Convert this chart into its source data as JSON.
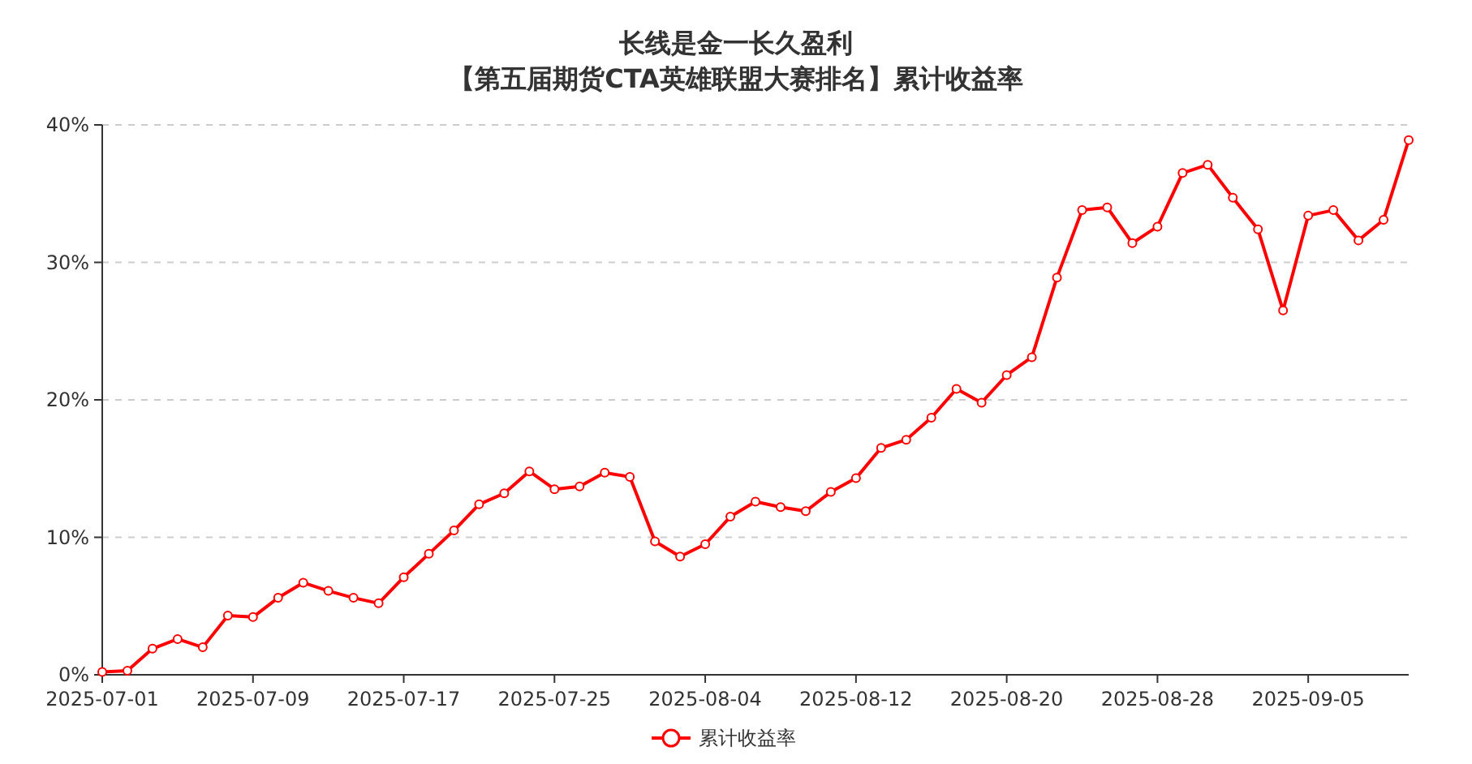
{
  "chart_data": {
    "type": "line",
    "title": "长线是金一长久盈利",
    "subtitle": "【第五届期货CTA英雄联盟大赛排名】累计收益率",
    "categories": [
      "2025-07-01",
      null,
      null,
      null,
      null,
      null,
      "2025-07-09",
      null,
      null,
      null,
      null,
      null,
      "2025-07-17",
      null,
      null,
      null,
      null,
      null,
      "2025-07-25",
      null,
      null,
      null,
      null,
      null,
      "2025-08-04",
      null,
      null,
      null,
      null,
      null,
      "2025-08-12",
      null,
      null,
      null,
      null,
      null,
      "2025-08-20",
      null,
      null,
      null,
      null,
      null,
      "2025-08-28",
      null,
      null,
      null,
      null,
      null,
      "2025-09-05",
      null,
      null,
      null,
      null
    ],
    "series": [
      {
        "name": "累计收益率",
        "color": "#ff0000",
        "values": [
          0.2,
          0.3,
          1.9,
          2.6,
          2.0,
          4.3,
          4.2,
          5.6,
          6.7,
          6.1,
          5.6,
          5.2,
          7.1,
          8.8,
          10.5,
          12.4,
          13.2,
          14.8,
          13.5,
          13.7,
          14.7,
          14.4,
          9.7,
          8.6,
          9.5,
          11.5,
          12.6,
          12.2,
          11.9,
          13.3,
          14.3,
          16.5,
          17.1,
          18.7,
          20.8,
          19.8,
          21.8,
          23.1,
          28.9,
          33.8,
          34.0,
          31.4,
          32.6,
          36.5,
          37.1,
          34.7,
          32.4,
          26.5,
          33.4,
          33.8,
          31.6,
          33.1,
          38.9
        ]
      }
    ],
    "ylim": [
      0,
      40
    ],
    "yticks": [
      {
        "value": 0,
        "label": "0%"
      },
      {
        "value": 10,
        "label": "10%"
      },
      {
        "value": 20,
        "label": "20%"
      },
      {
        "value": 30,
        "label": "30%"
      },
      {
        "value": 40,
        "label": "40%"
      }
    ],
    "grid": "y",
    "legend": "bottom",
    "marker": "circle",
    "line_style": "solid"
  }
}
